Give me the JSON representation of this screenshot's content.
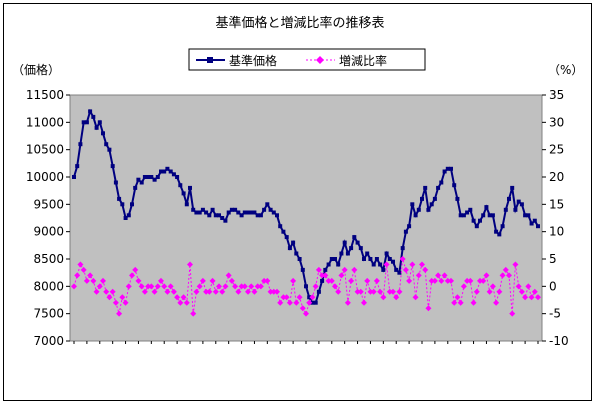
{
  "chart_data": {
    "type": "line",
    "title": "基準価格と増減比率の推移表",
    "y_left_label": "（価格）",
    "y_right_label": "（%）",
    "y_left_ticks": [
      "11500",
      "11000",
      "10500",
      "10000",
      "9500",
      "9000",
      "8500",
      "8000",
      "7500",
      "7000"
    ],
    "y_right_ticks": [
      "35",
      "30",
      "25",
      "20",
      "15",
      "10",
      "5",
      "0",
      "-5",
      "-10"
    ],
    "ylim_left": [
      7000,
      11500
    ],
    "ylim_right": [
      -10,
      35
    ],
    "grid": false,
    "plot_background": "#c0c0c0",
    "legend_position": "top",
    "series": [
      {
        "name": "基準価格",
        "axis": "left",
        "color": "#000080",
        "marker": "square",
        "values": [
          10000,
          10200,
          10600,
          11000,
          11000,
          11200,
          11100,
          10900,
          11000,
          10800,
          10600,
          10500,
          10200,
          9900,
          9600,
          9500,
          9250,
          9300,
          9500,
          9800,
          9950,
          9900,
          10000,
          10000,
          10000,
          9950,
          10000,
          10100,
          10100,
          10150,
          10100,
          10050,
          10000,
          9850,
          9700,
          9500,
          9800,
          9400,
          9350,
          9350,
          9400,
          9350,
          9300,
          9400,
          9300,
          9300,
          9250,
          9200,
          9350,
          9400,
          9400,
          9350,
          9300,
          9350,
          9350,
          9350,
          9350,
          9300,
          9300,
          9400,
          9500,
          9400,
          9350,
          9300,
          9100,
          9000,
          8900,
          8700,
          8800,
          8600,
          8500,
          8300,
          8000,
          7800,
          7700,
          7700,
          7900,
          8100,
          8300,
          8400,
          8500,
          8500,
          8400,
          8600,
          8800,
          8600,
          8700,
          8900,
          8800,
          8700,
          8500,
          8600,
          8500,
          8400,
          8500,
          8400,
          8300,
          8600,
          8500,
          8450,
          8300,
          8250,
          8700,
          9000,
          9100,
          9500,
          9300,
          9400,
          9600,
          9800,
          9400,
          9500,
          9600,
          9800,
          9900,
          10100,
          10150,
          10150,
          9850,
          9600,
          9300,
          9300,
          9350,
          9400,
          9200,
          9100,
          9200,
          9300,
          9450,
          9300,
          9300,
          9000,
          8950,
          9100,
          9400,
          9600,
          9800,
          9400,
          9550,
          9500,
          9300,
          9300,
          9150,
          9200,
          9100
        ],
        "labels": []
      },
      {
        "name": "増減比率",
        "axis": "right",
        "color": "#ff00ff",
        "marker": "diamond",
        "values": [
          0,
          2,
          4,
          3,
          1,
          2,
          1,
          -1,
          0,
          1,
          -1,
          -2,
          -1,
          -3,
          -5,
          -2,
          -3,
          0,
          2,
          3,
          1,
          0,
          -1,
          0,
          0,
          -1,
          0,
          1,
          0,
          -1,
          0,
          -1,
          -2,
          -3,
          -2,
          -3,
          4,
          -5,
          -1,
          0,
          1,
          -1,
          -1,
          1,
          -1,
          0,
          -1,
          0,
          2,
          1,
          0,
          -1,
          0,
          0,
          -1,
          0,
          -1,
          0,
          0,
          1,
          1,
          -1,
          -1,
          -1,
          -3,
          -2,
          -2,
          -3,
          1,
          -3,
          -2,
          -4,
          -5,
          -3,
          -2,
          0,
          3,
          2,
          2,
          1,
          1,
          0,
          -1,
          2,
          3,
          -3,
          1,
          3,
          -1,
          -1,
          -3,
          1,
          -1,
          -1,
          1,
          -1,
          -2,
          4,
          -1,
          -1,
          -2,
          -1,
          5,
          3,
          1,
          4,
          -2,
          2,
          4,
          3,
          -4,
          1,
          1,
          2,
          1,
          2,
          1,
          1,
          -3,
          -2,
          -3,
          0,
          1,
          1,
          -3,
          -1,
          1,
          1,
          2,
          -1,
          0,
          -3,
          -1,
          2,
          3,
          2,
          -5,
          4,
          0,
          -1,
          -2,
          0,
          -2,
          -1,
          -2
        ],
        "labels": []
      }
    ]
  }
}
